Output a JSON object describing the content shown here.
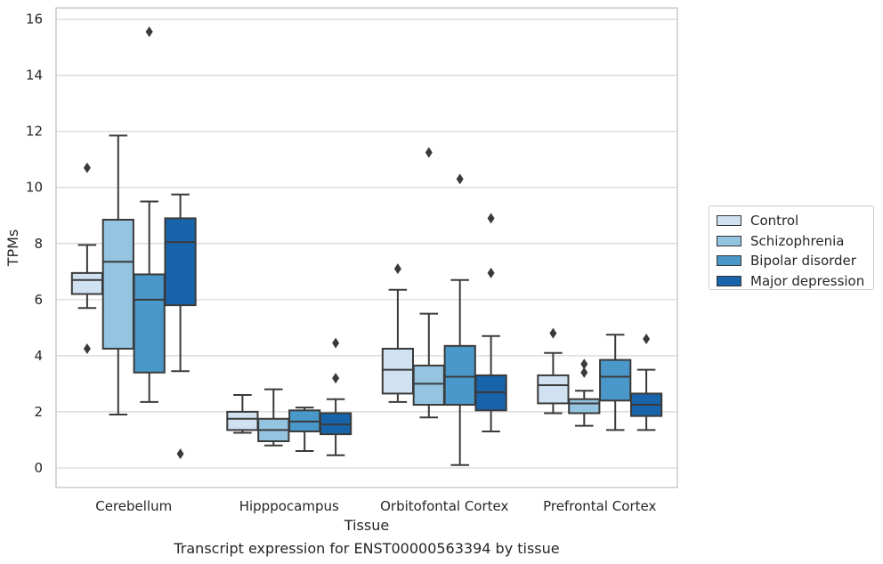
{
  "chart_data": {
    "type": "boxplot",
    "title": "Transcript expression for ENST00000563394 by tissue",
    "xlabel": "Tissue",
    "ylabel": "TPMs",
    "ylim": [
      -0.7,
      16.4
    ],
    "yticks": [
      0,
      2,
      4,
      6,
      8,
      10,
      12,
      14,
      16
    ],
    "grid": true,
    "legend_position": "right",
    "categories": [
      "Cerebellum",
      "Hipppocampus",
      "Orbitofontal Cortex",
      "Prefrontal Cortex"
    ],
    "series": [
      {
        "name": "Control",
        "color": "#d0e1f2",
        "boxes": [
          {
            "whislo": 5.7,
            "q1": 6.2,
            "med": 6.7,
            "q3": 6.95,
            "whishi": 7.95,
            "fliers": [
              10.7,
              4.25
            ]
          },
          {
            "whislo": 1.25,
            "q1": 1.35,
            "med": 1.75,
            "q3": 2.0,
            "whishi": 2.6,
            "fliers": []
          },
          {
            "whislo": 2.35,
            "q1": 2.65,
            "med": 3.5,
            "q3": 4.25,
            "whishi": 6.35,
            "fliers": [
              7.1
            ]
          },
          {
            "whislo": 1.95,
            "q1": 2.3,
            "med": 2.95,
            "q3": 3.3,
            "whishi": 4.1,
            "fliers": [
              4.8
            ]
          }
        ]
      },
      {
        "name": "Schizophrenia",
        "color": "#94c4df",
        "boxes": [
          {
            "whislo": 1.9,
            "q1": 4.25,
            "med": 7.35,
            "q3": 8.85,
            "whishi": 11.85,
            "fliers": []
          },
          {
            "whislo": 0.8,
            "q1": 0.95,
            "med": 1.35,
            "q3": 1.75,
            "whishi": 2.8,
            "fliers": []
          },
          {
            "whislo": 1.8,
            "q1": 2.25,
            "med": 3.0,
            "q3": 3.65,
            "whishi": 5.5,
            "fliers": [
              11.25
            ]
          },
          {
            "whislo": 1.5,
            "q1": 1.95,
            "med": 2.3,
            "q3": 2.45,
            "whishi": 2.75,
            "fliers": [
              3.7,
              3.4
            ]
          }
        ]
      },
      {
        "name": "Bipolar disorder",
        "color": "#4a98c9",
        "boxes": [
          {
            "whislo": 2.35,
            "q1": 3.4,
            "med": 6.0,
            "q3": 6.9,
            "whishi": 9.5,
            "fliers": [
              15.55
            ]
          },
          {
            "whislo": 0.6,
            "q1": 1.3,
            "med": 1.65,
            "q3": 2.05,
            "whishi": 2.15,
            "fliers": []
          },
          {
            "whislo": 0.1,
            "q1": 2.25,
            "med": 3.25,
            "q3": 4.35,
            "whishi": 6.7,
            "fliers": [
              10.3
            ]
          },
          {
            "whislo": 1.35,
            "q1": 2.4,
            "med": 3.25,
            "q3": 3.85,
            "whishi": 4.75,
            "fliers": []
          }
        ]
      },
      {
        "name": "Major depression",
        "color": "#1764ab",
        "boxes": [
          {
            "whislo": 3.45,
            "q1": 5.8,
            "med": 8.05,
            "q3": 8.9,
            "whishi": 9.75,
            "fliers": [
              0.5
            ]
          },
          {
            "whislo": 0.45,
            "q1": 1.2,
            "med": 1.55,
            "q3": 1.95,
            "whishi": 2.45,
            "fliers": [
              4.45,
              3.2
            ]
          },
          {
            "whislo": 1.3,
            "q1": 2.05,
            "med": 2.7,
            "q3": 3.3,
            "whishi": 4.7,
            "fliers": [
              8.9,
              6.95
            ]
          },
          {
            "whislo": 1.35,
            "q1": 1.85,
            "med": 2.25,
            "q3": 2.65,
            "whishi": 3.5,
            "fliers": [
              4.6
            ]
          }
        ]
      }
    ]
  }
}
